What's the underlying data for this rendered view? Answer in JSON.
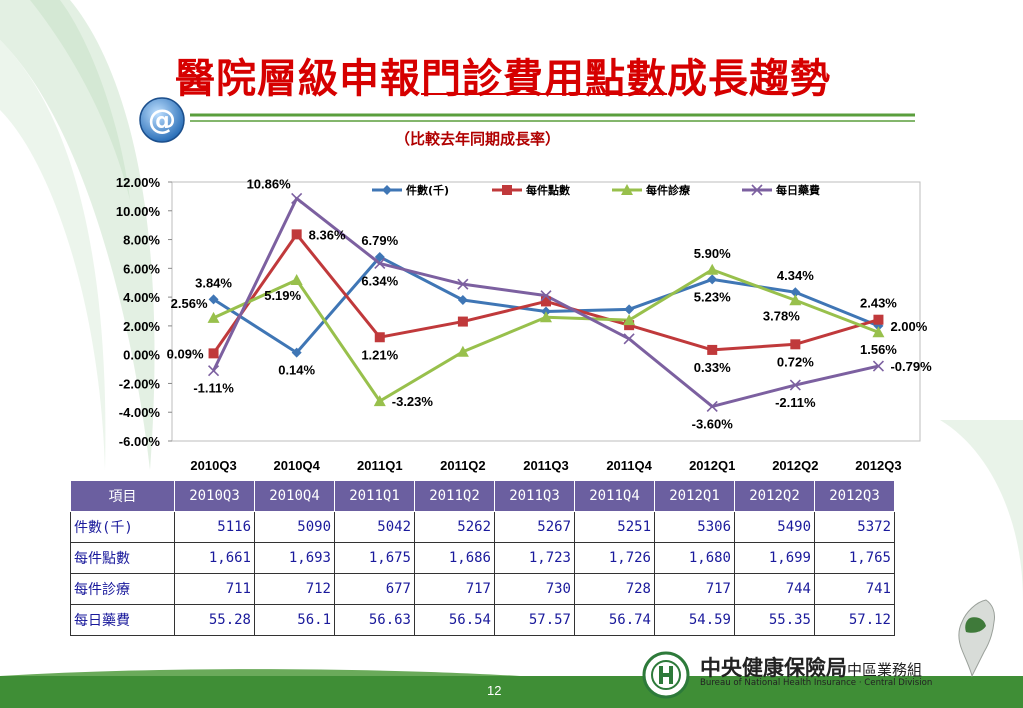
{
  "slide": {
    "title_part1": "醫院層級申報",
    "title_part2": "門診費用點數",
    "title_part3": "成長趨勢",
    "subtitle": "（比較去年同期成長率）",
    "page_number": "12",
    "org_name": "中央健康保險局",
    "org_region": "中區業務組",
    "org_english": "Bureau of National Health Insurance · Central Division",
    "colors": {
      "title": "#d60000",
      "header_bg": "#6b5fa0",
      "green_band": "#5a9e3c"
    }
  },
  "chart_data": {
    "type": "line",
    "categories": [
      "2010Q3",
      "2010Q4",
      "2011Q1",
      "2011Q2",
      "2011Q3",
      "2011Q4",
      "2012Q1",
      "2012Q2",
      "2012Q3"
    ],
    "ylim": [
      -6,
      12
    ],
    "yticks": [
      "-6.00%",
      "-4.00%",
      "-2.00%",
      "0.00%",
      "2.00%",
      "4.00%",
      "6.00%",
      "8.00%",
      "10.00%",
      "12.00%"
    ],
    "legend_position": "top",
    "series": [
      {
        "name": "件數(千)",
        "color": "#3f76b5",
        "marker": "diamond",
        "values": [
          3.84,
          0.14,
          6.79,
          3.8,
          3.0,
          3.15,
          5.23,
          4.34,
          2.0
        ]
      },
      {
        "name": "每件點數",
        "color": "#c0393b",
        "marker": "square",
        "values": [
          0.09,
          8.36,
          1.21,
          2.3,
          3.7,
          2.05,
          0.33,
          0.72,
          2.43
        ]
      },
      {
        "name": "每件診療",
        "color": "#98c04c",
        "marker": "triangle",
        "values": [
          2.56,
          5.19,
          -3.23,
          0.2,
          2.6,
          2.4,
          5.9,
          3.78,
          1.56
        ]
      },
      {
        "name": "每日藥費",
        "color": "#7c60a0",
        "marker": "x",
        "values": [
          -1.11,
          10.86,
          6.34,
          4.9,
          4.1,
          1.1,
          -3.6,
          -2.11,
          -0.79
        ]
      }
    ],
    "data_labels": [
      {
        "text": "3.84%",
        "series": 0,
        "index": 0,
        "pos": "above"
      },
      {
        "text": "0.14%",
        "series": 0,
        "index": 1,
        "pos": "below"
      },
      {
        "text": "6.79%",
        "series": 0,
        "index": 2,
        "pos": "above"
      },
      {
        "text": "5.23%",
        "series": 0,
        "index": 6,
        "pos": "below"
      },
      {
        "text": "4.34%",
        "series": 0,
        "index": 7,
        "pos": "above"
      },
      {
        "text": "2.00%",
        "series": 0,
        "index": 8,
        "pos": "right"
      },
      {
        "text": "0.09%",
        "series": 1,
        "index": 0,
        "pos": "left"
      },
      {
        "text": "8.36%",
        "series": 1,
        "index": 1,
        "pos": "right"
      },
      {
        "text": "1.21%",
        "series": 1,
        "index": 2,
        "pos": "below"
      },
      {
        "text": "0.33%",
        "series": 1,
        "index": 6,
        "pos": "below"
      },
      {
        "text": "0.72%",
        "series": 1,
        "index": 7,
        "pos": "below"
      },
      {
        "text": "2.43%",
        "series": 1,
        "index": 8,
        "pos": "above"
      },
      {
        "text": "2.56%",
        "series": 2,
        "index": 0,
        "pos": "above-left"
      },
      {
        "text": "5.19%",
        "series": 2,
        "index": 1,
        "pos": "below-left"
      },
      {
        "text": "-3.23%",
        "series": 2,
        "index": 2,
        "pos": "right"
      },
      {
        "text": "5.90%",
        "series": 2,
        "index": 6,
        "pos": "above"
      },
      {
        "text": "3.78%",
        "series": 2,
        "index": 7,
        "pos": "below-left"
      },
      {
        "text": "1.56%",
        "series": 2,
        "index": 8,
        "pos": "below"
      },
      {
        "text": "-1.11%",
        "series": 3,
        "index": 0,
        "pos": "below"
      },
      {
        "text": "10.86%",
        "series": 3,
        "index": 1,
        "pos": "above-left"
      },
      {
        "text": "6.34%",
        "series": 3,
        "index": 2,
        "pos": "below"
      },
      {
        "text": "-3.60%",
        "series": 3,
        "index": 6,
        "pos": "below"
      },
      {
        "text": "-2.11%",
        "series": 3,
        "index": 7,
        "pos": "below"
      },
      {
        "text": "-0.79%",
        "series": 3,
        "index": 8,
        "pos": "right"
      }
    ]
  },
  "table": {
    "corner": "項目",
    "columns": [
      "2010Q3",
      "2010Q4",
      "2011Q1",
      "2011Q2",
      "2011Q3",
      "2011Q4",
      "2012Q1",
      "2012Q2",
      "2012Q3"
    ],
    "rows": [
      {
        "label": "件數(千)",
        "cells": [
          "5116",
          "5090",
          "5042",
          "5262",
          "5267",
          "5251",
          "5306",
          "5490",
          "5372"
        ]
      },
      {
        "label": "每件點數",
        "cells": [
          "1,661",
          "1,693",
          "1,675",
          "1,686",
          "1,723",
          "1,726",
          "1,680",
          "1,699",
          "1,765"
        ]
      },
      {
        "label": "每件診療",
        "cells": [
          "711",
          "712",
          "677",
          "717",
          "730",
          "728",
          "717",
          "744",
          "741"
        ]
      },
      {
        "label": "每日藥費",
        "cells": [
          "55.28",
          "56.1",
          "56.63",
          "56.54",
          "57.57",
          "56.74",
          "54.59",
          "55.35",
          "57.12"
        ]
      }
    ]
  }
}
